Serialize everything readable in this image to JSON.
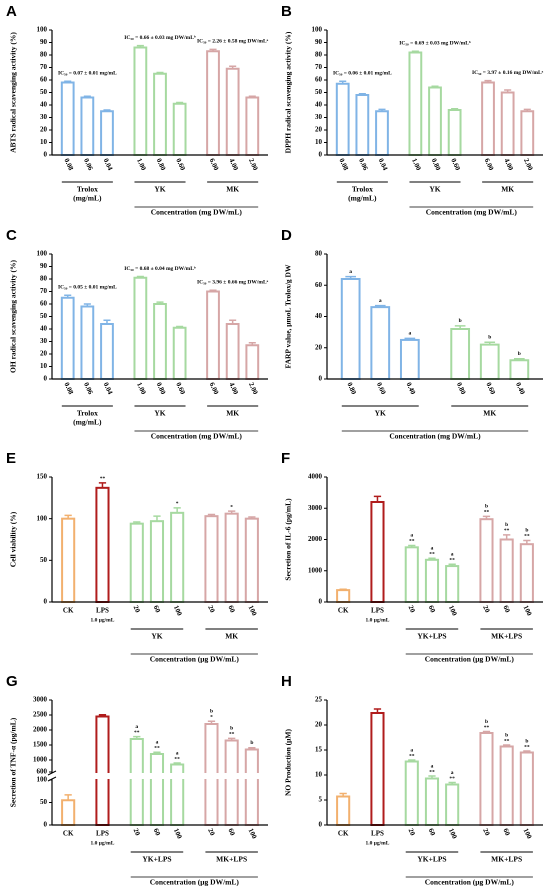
{
  "chart_data": [
    {
      "type": "bar",
      "panel": "A",
      "ylabel": "ABTS radical scavenging activity (%)",
      "xlabel": "Concentration (mg DW/mL)",
      "ylim": [
        0,
        100
      ],
      "yticks": [
        0,
        10,
        20,
        30,
        40,
        50,
        60,
        70,
        80,
        90,
        100
      ],
      "series": [
        {
          "name": "Trolox",
          "name_note": "(mg/mL)",
          "color": "#80b4e6",
          "categories": [
            "0.08",
            "0.06",
            "0.04"
          ],
          "values": [
            58,
            46,
            35
          ],
          "errors": [
            1,
            1,
            1
          ],
          "annotation": "IC₅₀ = 0.07 ± 0.01 mg/mL"
        },
        {
          "name": "YK",
          "color": "#a6d9a0",
          "categories": [
            "1.00",
            "0.80",
            "0.60"
          ],
          "values": [
            86,
            65,
            41
          ],
          "errors": [
            1.5,
            1,
            1
          ],
          "annotation": "IC₅₀ = 0.66 ± 0.03 mg DW/mLᵇ"
        },
        {
          "name": "MK",
          "color": "#d6a6a6",
          "categories": [
            "6.00",
            "4.00",
            "2.00"
          ],
          "values": [
            83,
            69,
            46
          ],
          "errors": [
            1.5,
            2,
            1
          ],
          "annotation": "IC₅₀ = 2.26 ± 0.58 mg DW/mLᵃ"
        }
      ]
    },
    {
      "type": "bar",
      "panel": "B",
      "ylabel": "DPPH radical scavenging activity (%)",
      "xlabel": "Concentration (mg DW/mL)",
      "ylim": [
        0,
        100
      ],
      "yticks": [
        0,
        10,
        20,
        30,
        40,
        50,
        60,
        70,
        80,
        90,
        100
      ],
      "series": [
        {
          "name": "Trolox",
          "name_note": "(mg/mL)",
          "color": "#80b4e6",
          "categories": [
            "0.08",
            "0.06",
            "0.04"
          ],
          "values": [
            57,
            48,
            35
          ],
          "errors": [
            2,
            1,
            1.5
          ],
          "annotation": "IC₅₀ = 0.06 ± 0.01 mg/mL"
        },
        {
          "name": "YK",
          "color": "#a6d9a0",
          "categories": [
            "1.00",
            "0.80",
            "0.60"
          ],
          "values": [
            82,
            54,
            36
          ],
          "errors": [
            1,
            1,
            1
          ],
          "annotation": "IC₅₀ = 0.69 ± 0.03 mg DW/mLᵇ"
        },
        {
          "name": "MK",
          "color": "#d6a6a6",
          "categories": [
            "6.00",
            "4.00",
            "2.00"
          ],
          "values": [
            58,
            50,
            35
          ],
          "errors": [
            1.5,
            2,
            1.5
          ],
          "annotation": "IC₅₀ = 3.97 ± 0.16 mg DW/mLᵃ"
        }
      ]
    },
    {
      "type": "bar",
      "panel": "C",
      "ylabel": "OH radical scavenging activity (%)",
      "xlabel": "Concentration (mg DW/mL)",
      "ylim": [
        0,
        100
      ],
      "yticks": [
        0,
        10,
        20,
        30,
        40,
        50,
        60,
        70,
        80,
        90,
        100
      ],
      "series": [
        {
          "name": "Trolox",
          "name_note": "(mg/mL)",
          "color": "#80b4e6",
          "categories": [
            "0.08",
            "0.06",
            "0.04"
          ],
          "values": [
            65,
            58,
            44
          ],
          "errors": [
            2,
            2,
            3
          ],
          "annotation": "IC₅₀ = 0.05 ± 0.01 mg/mL"
        },
        {
          "name": "YK",
          "color": "#a6d9a0",
          "categories": [
            "1.00",
            "0.80",
            "0.60"
          ],
          "values": [
            81,
            60,
            41
          ],
          "errors": [
            1,
            1.5,
            1
          ],
          "annotation": "IC₅₀ = 0.68 ± 0.04 mg DW/mLᵇ"
        },
        {
          "name": "MK",
          "color": "#d6a6a6",
          "categories": [
            "6.00",
            "4.00",
            "2.00"
          ],
          "values": [
            70,
            44,
            27
          ],
          "errors": [
            1,
            3,
            2
          ],
          "annotation": "IC₅₀ = 3.96 ± 0.66 mg DW/mLᵃ"
        }
      ]
    },
    {
      "type": "bar",
      "panel": "D",
      "ylabel": "FARP value, μmoL Trolox/g DW",
      "xlabel": "Concentration (mg DW/mL)",
      "ylim": [
        0,
        80
      ],
      "yticks": [
        0,
        20,
        40,
        60,
        80
      ],
      "series": [
        {
          "name": "YK",
          "color": "#80b4e6",
          "categories": [
            "0.80",
            "0.60",
            "0.40"
          ],
          "values": [
            64,
            46,
            25
          ],
          "errors": [
            1.5,
            1,
            1
          ],
          "letters": [
            "a",
            "a",
            "a"
          ]
        },
        {
          "name": "MK",
          "color": "#a6d9a0",
          "categories": [
            "0.80",
            "0.60",
            "0.40"
          ],
          "values": [
            32,
            22,
            12
          ],
          "errors": [
            2,
            1.5,
            1
          ],
          "letters": [
            "b",
            "b",
            "b"
          ]
        }
      ]
    },
    {
      "type": "bar",
      "panel": "E",
      "ylabel": "Cell viability (%)",
      "xlabel": "Concentration (μg DW/mL)",
      "ylim": [
        0,
        150
      ],
      "yticks": [
        0,
        50,
        100,
        150
      ],
      "series": [
        {
          "color": "#f2b06e",
          "categories": [
            "CK"
          ],
          "values": [
            100
          ],
          "errors": [
            4
          ]
        },
        {
          "color": "#b01c1c",
          "categories": [
            "LPS"
          ],
          "note": "1.0 μg/mL",
          "values": [
            137
          ],
          "errors": [
            6
          ],
          "stars": [
            "**"
          ]
        },
        {
          "name": "YK",
          "color": "#a6d9a0",
          "categories": [
            "20",
            "60",
            "100"
          ],
          "values": [
            94,
            97,
            107
          ],
          "errors": [
            2,
            6,
            6
          ],
          "stars": [
            null,
            null,
            "*"
          ]
        },
        {
          "name": "MK",
          "color": "#d6a6a6",
          "categories": [
            "20",
            "60",
            "100"
          ],
          "values": [
            103,
            106,
            100
          ],
          "errors": [
            2,
            3,
            2
          ],
          "stars": [
            null,
            "*",
            null
          ]
        }
      ]
    },
    {
      "type": "bar",
      "panel": "F",
      "ylabel": "Secretion of IL-6 (pg/mL)",
      "xlabel": "Concentration (μg DW/mL)",
      "ylim": [
        0,
        4000
      ],
      "yticks": [
        0,
        1000,
        2000,
        3000,
        4000
      ],
      "series": [
        {
          "color": "#f2b06e",
          "categories": [
            "CK"
          ],
          "values": [
            380
          ],
          "errors": [
            30
          ]
        },
        {
          "color": "#b01c1c",
          "categories": [
            "LPS"
          ],
          "note": "1.0 μg/mL",
          "values": [
            3200
          ],
          "errors": [
            180
          ]
        },
        {
          "name": "YK+LPS",
          "color": "#a6d9a0",
          "categories": [
            "20",
            "60",
            "100"
          ],
          "values": [
            1750,
            1350,
            1150
          ],
          "errors": [
            60,
            50,
            60
          ],
          "letters": [
            "a",
            "a",
            "a"
          ],
          "stars": [
            "**",
            "**",
            "**"
          ]
        },
        {
          "name": "MK+LPS",
          "color": "#d6a6a6",
          "categories": [
            "20",
            "60",
            "100"
          ],
          "values": [
            2650,
            2000,
            1850
          ],
          "errors": [
            90,
            150,
            120
          ],
          "letters": [
            "b",
            "b",
            "b"
          ],
          "stars": [
            "**",
            "**",
            "**"
          ]
        }
      ]
    },
    {
      "type": "bar",
      "panel": "G",
      "ylabel": "Secretion of TNF-α (pg/mL)",
      "xlabel": "Concentration (μg DW/mL)",
      "ylim": [
        0,
        3000
      ],
      "axis_break": [
        100,
        600
      ],
      "yticks": [
        0,
        50,
        100,
        600,
        1000,
        1500,
        2000,
        2500,
        3000
      ],
      "series": [
        {
          "color": "#f2b06e",
          "categories": [
            "CK"
          ],
          "values": [
            55
          ],
          "errors": [
            12
          ]
        },
        {
          "color": "#b01c1c",
          "categories": [
            "LPS"
          ],
          "note": "1.0 μg/mL",
          "values": [
            2450
          ],
          "errors": [
            60
          ]
        },
        {
          "name": "YK+LPS",
          "color": "#a6d9a0",
          "categories": [
            "20",
            "60",
            "100"
          ],
          "values": [
            1700,
            1200,
            850
          ],
          "errors": [
            80,
            60,
            50
          ],
          "letters": [
            "a",
            "a",
            "a"
          ],
          "stars": [
            "**",
            "**",
            "**"
          ]
        },
        {
          "name": "MK+LPS",
          "color": "#d6a6a6",
          "categories": [
            "20",
            "60",
            "100"
          ],
          "values": [
            2200,
            1650,
            1350
          ],
          "errors": [
            90,
            70,
            60
          ],
          "letters": [
            "b",
            "b",
            "b"
          ],
          "stars": [
            "*",
            "**",
            null
          ]
        }
      ]
    },
    {
      "type": "bar",
      "panel": "H",
      "ylabel": "NO Production (μM)",
      "xlabel": "Concentration (μg DW/mL)",
      "ylim": [
        0,
        25
      ],
      "yticks": [
        0,
        5,
        10,
        15,
        20,
        25
      ],
      "series": [
        {
          "color": "#f2b06e",
          "categories": [
            "CK"
          ],
          "values": [
            5.7
          ],
          "errors": [
            0.6
          ]
        },
        {
          "color": "#b01c1c",
          "categories": [
            "LPS"
          ],
          "note": "1.0 μg/mL",
          "values": [
            22.4
          ],
          "errors": [
            0.8
          ]
        },
        {
          "name": "YK+LPS",
          "color": "#a6d9a0",
          "categories": [
            "20",
            "60",
            "100"
          ],
          "values": [
            12.7,
            9.3,
            8.1
          ],
          "errors": [
            0.3,
            0.5,
            0.4
          ],
          "letters": [
            "a",
            "a",
            "a"
          ],
          "stars": [
            "**",
            "**",
            "**"
          ]
        },
        {
          "name": "MK+LPS",
          "color": "#d6a6a6",
          "categories": [
            "20",
            "60",
            "100"
          ],
          "values": [
            18.4,
            15.7,
            14.5
          ],
          "errors": [
            0.3,
            0.3,
            0.3
          ],
          "letters": [
            "b",
            "b",
            "b"
          ],
          "stars": [
            "**",
            "**",
            "**"
          ]
        }
      ]
    }
  ]
}
